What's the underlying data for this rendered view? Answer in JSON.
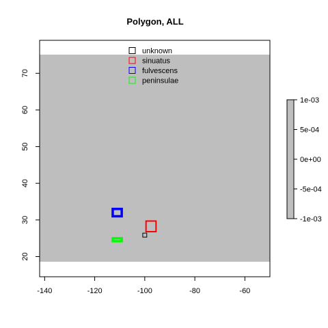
{
  "chart_data": {
    "type": "scatter",
    "title": "Polygon, ALL",
    "xlabel": "",
    "ylabel": "",
    "xlim": [
      -142,
      -50
    ],
    "ylim": [
      14.5,
      79
    ],
    "x_ticks": [
      "-140",
      "-120",
      "-100",
      "-80",
      "-60"
    ],
    "x_tick_values": [
      -140,
      -120,
      -100,
      -80,
      -60
    ],
    "y_ticks": [
      "20",
      "30",
      "40",
      "50",
      "60",
      "70"
    ],
    "y_tick_values": [
      20,
      30,
      40,
      50,
      60,
      70
    ],
    "background_region": {
      "xmin": -142,
      "xmax": -50,
      "ymin": 18.6,
      "ymax": 75.1,
      "color": "#bebebe"
    },
    "grid": false,
    "legend_position": "top-center",
    "series": [
      {
        "name": "unknown",
        "color": "#000000",
        "line_width": 1,
        "boxes": [
          {
            "xmin": -100.8,
            "xmax": -99.2,
            "ymin": 25.3,
            "ymax": 26.4
          }
        ]
      },
      {
        "name": "sinuatus",
        "color": "#ff0000",
        "line_width": 2,
        "boxes": [
          {
            "xmin": -99.5,
            "xmax": -95.5,
            "ymin": 26.8,
            "ymax": 29.7
          }
        ]
      },
      {
        "name": "fulvescens",
        "color": "#0000ff",
        "line_width": 3.5,
        "boxes": [
          {
            "xmin": -112.8,
            "xmax": -109.2,
            "ymin": 31.0,
            "ymax": 33.0
          }
        ]
      },
      {
        "name": "peninsulae",
        "color": "#00ff00",
        "line_width": 3.5,
        "boxes": [
          {
            "xmin": -112.8,
            "xmax": -109.2,
            "ymin": 24.2,
            "ymax": 25.0
          }
        ]
      }
    ],
    "colorbar": {
      "labels": [
        "1e-03",
        "5e-04",
        "0e+00",
        "-5e-04",
        "-1e-03"
      ],
      "values": [
        0.001,
        0.0005,
        0,
        -0.0005,
        -0.001
      ],
      "range": [
        -0.001,
        0.001
      ],
      "color": "#bebebe"
    }
  }
}
